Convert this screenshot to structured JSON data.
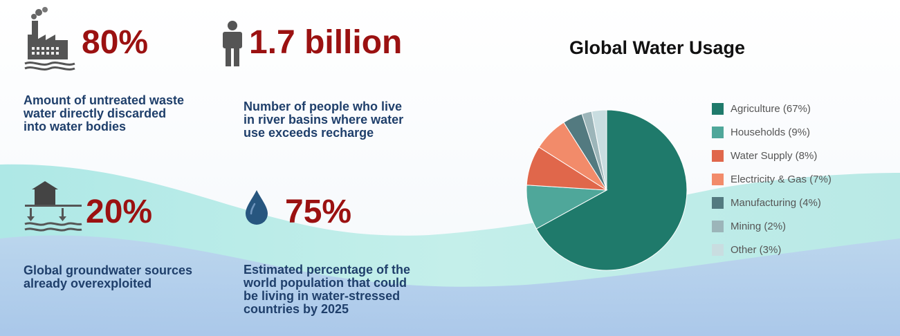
{
  "stats": [
    {
      "value": "80%",
      "description": "Amount of untreated waste\nwater directly discarded\ninto water bodies",
      "icon": "factory-icon"
    },
    {
      "value": "1.7 billion",
      "description": "Number of people who live\nin river basins where water\nuse exceeds recharge",
      "icon": "person-icon"
    },
    {
      "value": "20%",
      "description": "Global groundwater sources\nalready overexploited",
      "icon": "groundwater-icon"
    },
    {
      "value": "75%",
      "description": "Estimated percentage of the\nworld population that could\nbe living in water-stressed\ncountries by 2025",
      "icon": "water-drop-icon"
    }
  ],
  "colors": {
    "stat_value": "#9b1111",
    "description": "#1f3f6b",
    "icon": "#555555"
  },
  "chart_data": {
    "type": "pie",
    "title": "Global Water Usage",
    "legend_position": "right",
    "start_angle": "12 o'clock, clockwise",
    "categories": [
      "Agriculture",
      "Households",
      "Water Supply",
      "Electricity & Gas",
      "Manufacturing",
      "Mining",
      "Other"
    ],
    "values": [
      67,
      9,
      8,
      7,
      4,
      2,
      3
    ],
    "legend_labels": [
      "Agriculture (67%)",
      "Households (9%)",
      "Water Supply (8%)",
      "Electricity & Gas (7%)",
      "Manufacturing (4%)",
      "Mining (2%)",
      "Other (3%)"
    ],
    "colors": [
      "#1f7a6b",
      "#4fa79a",
      "#e0674b",
      "#f28b6a",
      "#537a80",
      "#9cb5b9",
      "#c9dde0"
    ]
  }
}
